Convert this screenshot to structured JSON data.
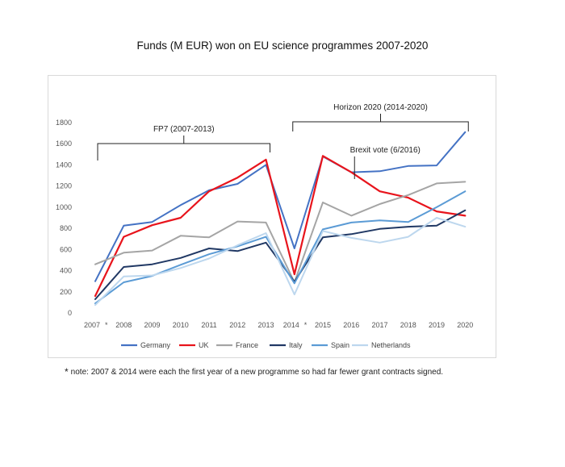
{
  "chart_data": {
    "type": "line",
    "title": "Funds (M EUR) won on EU science programmes 2007-2020",
    "categories": [
      "2007",
      "2008",
      "2009",
      "2010",
      "2011",
      "2012",
      "2013",
      "2014",
      "2015",
      "2016",
      "2017",
      "2018",
      "2019",
      "2020"
    ],
    "category_stars": [
      true,
      false,
      false,
      false,
      false,
      false,
      false,
      true,
      false,
      false,
      false,
      false,
      false,
      false
    ],
    "y_ticks": [
      0,
      200,
      400,
      600,
      800,
      1000,
      1200,
      1400,
      1600,
      1800
    ],
    "ylim": [
      0,
      1800
    ],
    "grid": false,
    "legend_position": "bottom",
    "series": [
      {
        "name": "Germany",
        "color": "#4472c4",
        "width": 2,
        "values": [
          300,
          825,
          860,
          1020,
          1160,
          1220,
          1400,
          610,
          1480,
          1330,
          1340,
          1390,
          1395,
          1710
        ]
      },
      {
        "name": "UK",
        "color": "#e8141c",
        "width": 2.2,
        "values": [
          160,
          720,
          830,
          900,
          1150,
          1280,
          1450,
          365,
          1485,
          1330,
          1150,
          1090,
          960,
          920
        ]
      },
      {
        "name": "France",
        "color": "#a5a5a5",
        "width": 2,
        "values": [
          460,
          570,
          590,
          730,
          715,
          865,
          855,
          290,
          1045,
          920,
          1030,
          1115,
          1225,
          1240
        ]
      },
      {
        "name": "Italy",
        "color": "#203864",
        "width": 2,
        "values": [
          130,
          435,
          460,
          520,
          610,
          585,
          665,
          295,
          715,
          745,
          795,
          815,
          825,
          970
        ]
      },
      {
        "name": "Spain",
        "color": "#5b9bd5",
        "width": 2,
        "values": [
          90,
          290,
          350,
          455,
          555,
          630,
          720,
          280,
          790,
          855,
          875,
          860,
          1000,
          1150
        ]
      },
      {
        "name": "Netherlands",
        "color": "#bdd7ee",
        "width": 2,
        "values": [
          75,
          345,
          355,
          425,
          515,
          640,
          755,
          175,
          775,
          710,
          665,
          720,
          900,
          815
        ]
      }
    ],
    "annotations": {
      "fp7": {
        "label": "FP7 (2007-2013)",
        "from": "2007",
        "to": "2013"
      },
      "horizon": {
        "label": "Horizon 2020 (2014-2020)",
        "from": "2014",
        "to": "2020"
      },
      "brexit": {
        "label": "Brexit vote (6/2016)",
        "at": "2016"
      }
    },
    "note": "note: 2007 & 2014 were each the first year of a new programme so had far fewer grant contracts signed."
  }
}
